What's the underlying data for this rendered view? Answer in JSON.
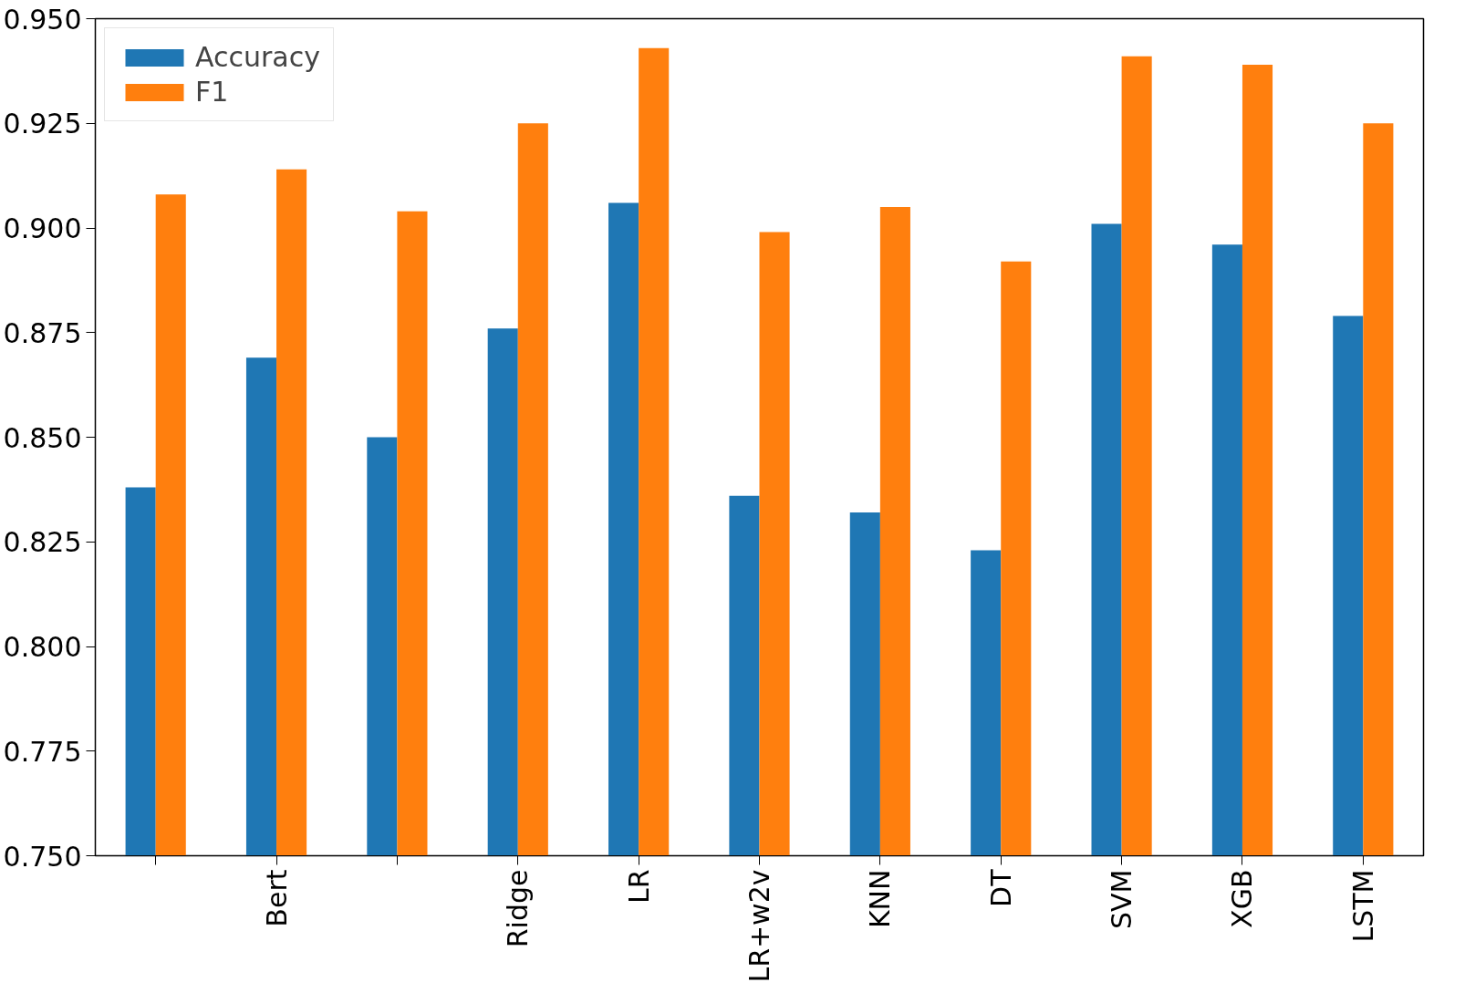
{
  "chart_data": {
    "type": "bar",
    "categories": [
      null,
      "Bert",
      null,
      "Ridge",
      "LR",
      "LR+w2v",
      "KNN",
      "DT",
      "SVM",
      "XGB",
      "LSTM"
    ],
    "series": [
      {
        "name": "Accuracy",
        "color": "#1f77b4",
        "values": [
          0.838,
          0.869,
          0.85,
          0.876,
          0.906,
          0.836,
          0.832,
          0.823,
          0.901,
          0.896,
          0.879
        ]
      },
      {
        "name": "F1",
        "color": "#ff7f0e",
        "values": [
          0.908,
          0.914,
          0.904,
          0.925,
          0.943,
          0.899,
          0.905,
          0.892,
          0.941,
          0.939,
          0.925
        ]
      }
    ],
    "ylim": [
      0.75,
      0.95
    ],
    "yticks": [
      {
        "value": 0.75,
        "label": "0.750"
      },
      {
        "value": 0.775,
        "label": "0.775"
      },
      {
        "value": 0.8,
        "label": "0.800"
      },
      {
        "value": 0.825,
        "label": "0.825"
      },
      {
        "value": 0.85,
        "label": "0.850"
      },
      {
        "value": 0.875,
        "label": "0.875"
      },
      {
        "value": 0.9,
        "label": "0.900"
      },
      {
        "value": 0.925,
        "label": "0.925"
      },
      {
        "value": 0.95,
        "label": "0.950"
      }
    ],
    "grid": false,
    "legend": "top left"
  }
}
